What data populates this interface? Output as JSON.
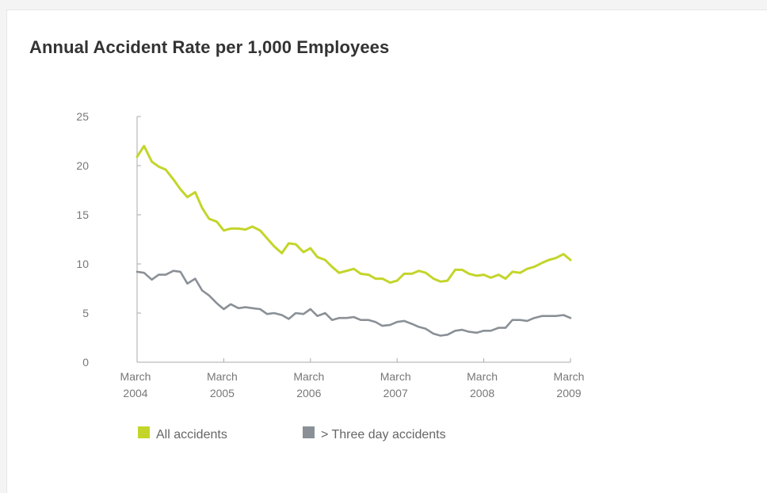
{
  "card": {
    "title": "Annual Accident Rate per 1,000 Employees"
  },
  "chart_data": {
    "type": "line",
    "title": "Annual Accident Rate per 1,000 Employees",
    "xlabel": "",
    "ylabel": "",
    "ylim": [
      0,
      25
    ],
    "xlim": [
      2004,
      2009
    ],
    "yticks": [
      "0",
      "5",
      "10",
      "15",
      "20",
      "25"
    ],
    "xticks": [
      {
        "month": "March",
        "year": "2004"
      },
      {
        "month": "March",
        "year": "2005"
      },
      {
        "month": "March",
        "year": "2006"
      },
      {
        "month": "March",
        "year": "2007"
      },
      {
        "month": "March",
        "year": "2008"
      },
      {
        "month": "March",
        "year": "2009"
      }
    ],
    "grid": false,
    "legend_position": "bottom",
    "x": [
      2004.0,
      2004.08,
      2004.17,
      2004.25,
      2004.33,
      2004.42,
      2004.5,
      2004.58,
      2004.67,
      2004.75,
      2004.83,
      2004.92,
      2005.0,
      2005.08,
      2005.17,
      2005.25,
      2005.33,
      2005.42,
      2005.5,
      2005.58,
      2005.67,
      2005.75,
      2005.83,
      2005.92,
      2006.0,
      2006.08,
      2006.17,
      2006.25,
      2006.33,
      2006.42,
      2006.5,
      2006.58,
      2006.67,
      2006.75,
      2006.83,
      2006.92,
      2007.0,
      2007.08,
      2007.17,
      2007.25,
      2007.33,
      2007.42,
      2007.5,
      2007.58,
      2007.67,
      2007.75,
      2007.83,
      2007.92,
      2008.0,
      2008.08,
      2008.17,
      2008.25,
      2008.33,
      2008.42,
      2008.5,
      2008.58,
      2008.67,
      2008.75,
      2008.83,
      2008.92,
      2009.0
    ],
    "series": [
      {
        "name": "All accidents",
        "color": "#c3d52a",
        "values": [
          20.9,
          22.0,
          20.4,
          19.9,
          19.6,
          18.6,
          17.6,
          16.8,
          17.3,
          15.7,
          14.6,
          14.3,
          13.4,
          13.6,
          13.6,
          13.5,
          13.8,
          13.4,
          12.6,
          11.8,
          11.1,
          12.1,
          12.0,
          11.2,
          11.6,
          10.7,
          10.4,
          9.7,
          9.1,
          9.3,
          9.5,
          9.0,
          8.9,
          8.5,
          8.5,
          8.1,
          8.3,
          9.0,
          9.0,
          9.3,
          9.1,
          8.5,
          8.2,
          8.3,
          9.4,
          9.4,
          9.0,
          8.8,
          8.9,
          8.6,
          8.9,
          8.5,
          9.2,
          9.1,
          9.5,
          9.7,
          10.1,
          10.4,
          10.6,
          11.0,
          10.4
        ]
      },
      {
        "name": "> Three day accidents",
        "color": "#8a9096",
        "values": [
          9.2,
          9.1,
          8.4,
          8.9,
          8.9,
          9.3,
          9.2,
          8.0,
          8.5,
          7.3,
          6.8,
          6.0,
          5.4,
          5.9,
          5.5,
          5.6,
          5.5,
          5.4,
          4.9,
          5.0,
          4.8,
          4.4,
          5.0,
          4.9,
          5.4,
          4.7,
          5.0,
          4.3,
          4.5,
          4.5,
          4.6,
          4.3,
          4.3,
          4.1,
          3.7,
          3.8,
          4.1,
          4.2,
          3.9,
          3.6,
          3.4,
          2.9,
          2.7,
          2.8,
          3.2,
          3.3,
          3.1,
          3.0,
          3.2,
          3.2,
          3.5,
          3.5,
          4.3,
          4.3,
          4.2,
          4.5,
          4.7,
          4.7,
          4.7,
          4.8,
          4.5
        ]
      }
    ]
  }
}
